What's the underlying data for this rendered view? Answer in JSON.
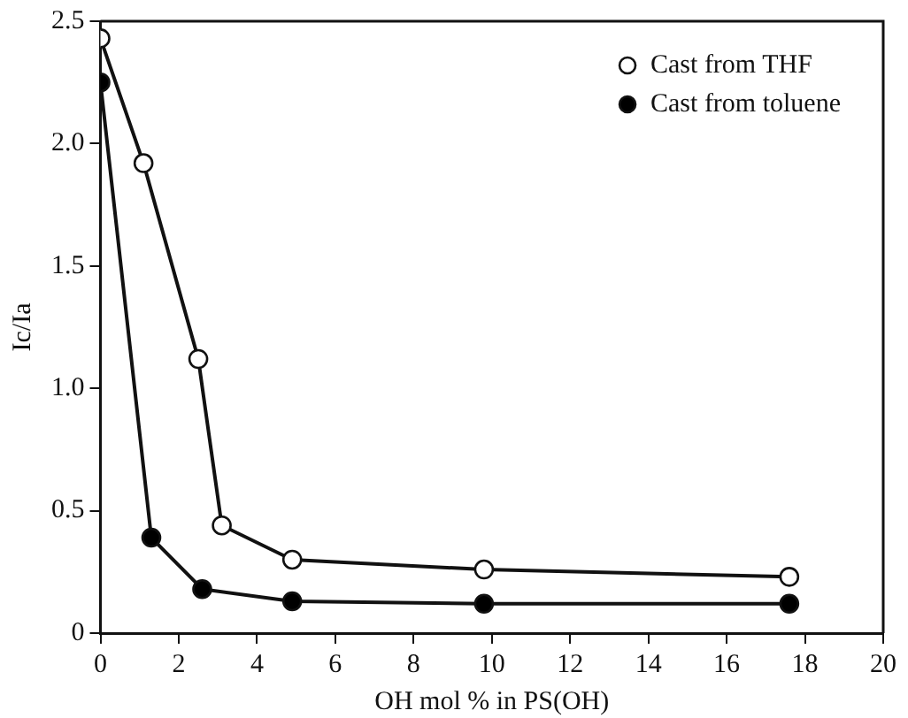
{
  "chart_data": {
    "type": "line",
    "xlabel": "OH mol % in PS(OH)",
    "ylabel": "Ic/Ia",
    "xlim": [
      0,
      20
    ],
    "xticks": [
      0,
      2,
      4,
      6,
      8,
      10,
      12,
      14,
      16,
      18,
      20
    ],
    "ylim": [
      0,
      2.5
    ],
    "yticks": [
      0,
      0.5,
      {
        "value": 1,
        "label": "1.0"
      },
      1.5,
      {
        "value": 2,
        "label": "2.0"
      },
      2.5
    ],
    "grid": false,
    "legend": "top right",
    "marker": "circle",
    "line_style": "solid",
    "series": [
      {
        "name": "Cast from THF",
        "color": "#ffffff",
        "x": [
          0,
          1.1,
          2.5,
          3.1,
          4.9,
          9.8,
          17.6
        ],
        "values": [
          2.43,
          1.92,
          1.12,
          0.44,
          0.3,
          0.26,
          0.23
        ]
      },
      {
        "name": "Cast from toluene",
        "color": "#000000",
        "x": [
          0,
          1.3,
          2.6,
          4.9,
          9.8,
          17.6
        ],
        "values": [
          2.25,
          0.39,
          0.18,
          0.13,
          0.12,
          0.12
        ]
      }
    ]
  }
}
